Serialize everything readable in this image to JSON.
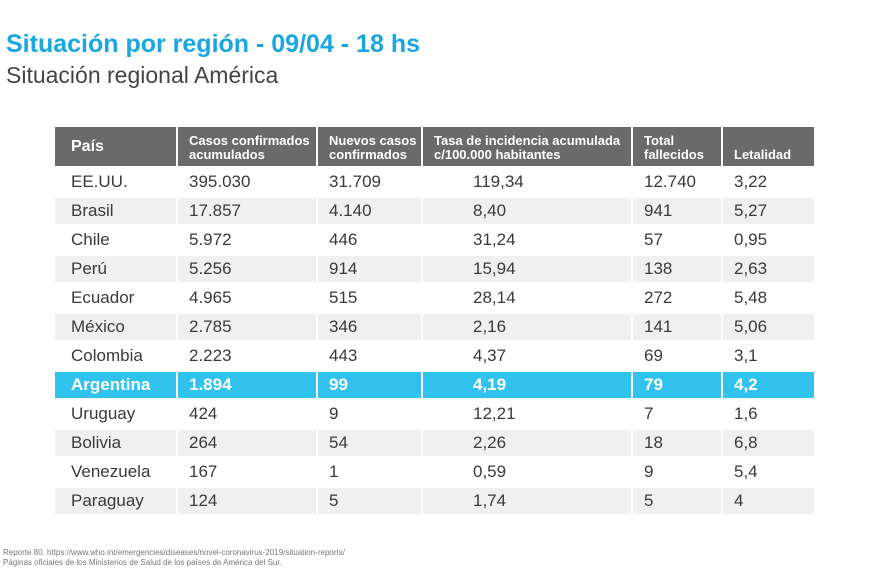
{
  "header": {
    "title": "Situación por región - 09/04 - 18 hs",
    "subtitle": "Situación regional América"
  },
  "table": {
    "columns": [
      {
        "line1": "País",
        "line2": ""
      },
      {
        "line1": "Casos confirmados",
        "line2": "acumulados"
      },
      {
        "line1": "Nuevos casos",
        "line2": "confirmados"
      },
      {
        "line1": "Tasa de incidencia acumulada",
        "line2": "c/100.000 habitantes"
      },
      {
        "line1": "Total",
        "line2": "fallecidos"
      },
      {
        "line1": "",
        "line2": "Letalidad"
      }
    ],
    "rows": [
      {
        "pais": "EE.UU.",
        "casos": "395.030",
        "nuevos": "31.709",
        "tasa": "119,34",
        "fallecidos": "12.740",
        "letalidad": "3,22"
      },
      {
        "pais": "Brasil",
        "casos": "17.857",
        "nuevos": "4.140",
        "tasa": "8,40",
        "fallecidos": "941",
        "letalidad": "5,27"
      },
      {
        "pais": "Chile",
        "casos": "5.972",
        "nuevos": "446",
        "tasa": "31,24",
        "fallecidos": "57",
        "letalidad": "0,95"
      },
      {
        "pais": "Perú",
        "casos": "5.256",
        "nuevos": "914",
        "tasa": "15,94",
        "fallecidos": "138",
        "letalidad": "2,63"
      },
      {
        "pais": "Ecuador",
        "casos": "4.965",
        "nuevos": "515",
        "tasa": "28,14",
        "fallecidos": "272",
        "letalidad": "5,48"
      },
      {
        "pais": "México",
        "casos": "2.785",
        "nuevos": "346",
        "tasa": "2,16",
        "fallecidos": "141",
        "letalidad": "5,06"
      },
      {
        "pais": "Colombia",
        "casos": "2.223",
        "nuevos": "443",
        "tasa": "4,37",
        "fallecidos": "69",
        "letalidad": "3,1"
      },
      {
        "pais": "Argentina",
        "casos": "1.894",
        "nuevos": "99",
        "tasa": "4,19",
        "fallecidos": "79",
        "letalidad": "4,2",
        "highlight": true
      },
      {
        "pais": "Uruguay",
        "casos": "424",
        "nuevos": "9",
        "tasa": "12,21",
        "fallecidos": "7",
        "letalidad": "1,6"
      },
      {
        "pais": "Bolivia",
        "casos": "264",
        "nuevos": "54",
        "tasa": "2,26",
        "fallecidos": "18",
        "letalidad": "6,8"
      },
      {
        "pais": "Venezuela",
        "casos": "167",
        "nuevos": "1",
        "tasa": "0,59",
        "fallecidos": "9",
        "letalidad": "5,4"
      },
      {
        "pais": "Paraguay",
        "casos": "124",
        "nuevos": "5",
        "tasa": "1,74",
        "fallecidos": "5",
        "letalidad": "4"
      }
    ]
  },
  "footer": {
    "line1": "Reporte 80. https://www.who.int/emergencies/diseases/novel-coronavirus-2019/situation-reports/",
    "line2": "Páginas oficiales de los Ministerios de Salud de los países de América del Sur."
  },
  "colors": {
    "title": "#1aa6e0",
    "header_bg": "#6a6a6a",
    "highlight": "#31c3ed",
    "stripe": "#f0f0f0"
  }
}
